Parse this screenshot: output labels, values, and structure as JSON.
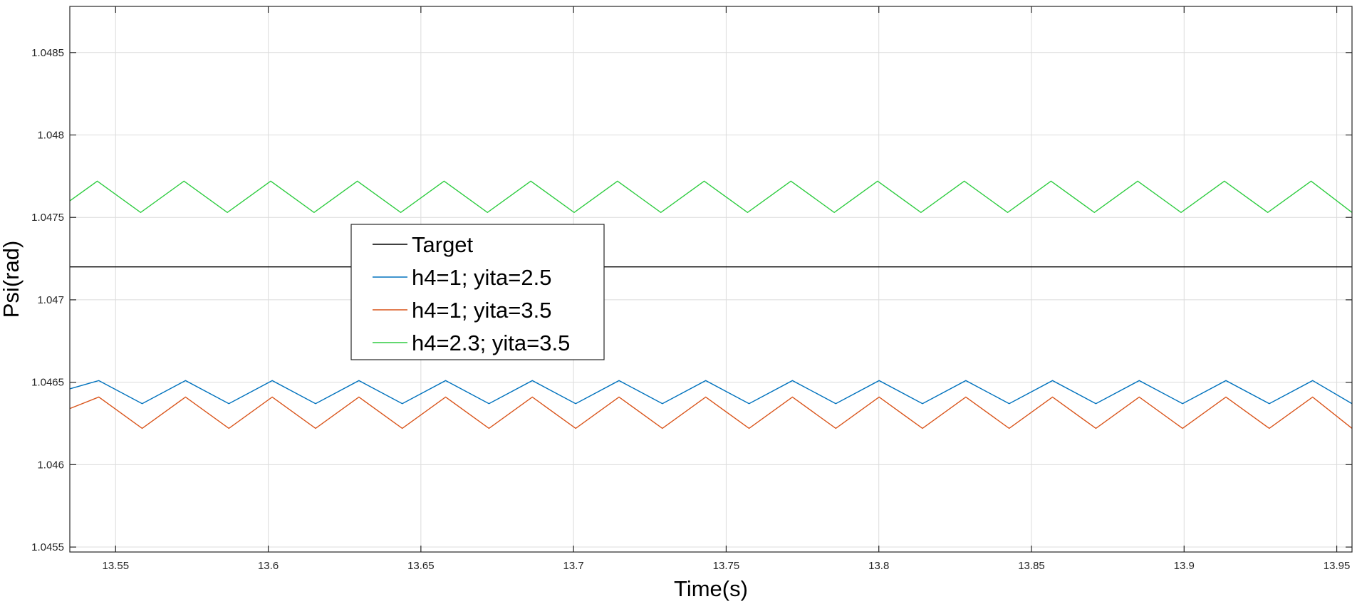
{
  "chart_data": {
    "type": "line",
    "xlabel": "Time(s)",
    "ylabel": "Psi(rad)",
    "xlim": [
      13.535,
      13.955
    ],
    "ylim": [
      1.04547,
      1.04878
    ],
    "x_ticks": [
      13.55,
      13.6,
      13.65,
      13.7,
      13.75,
      13.8,
      13.85,
      13.9,
      13.95
    ],
    "x_tick_labels": [
      "13.55",
      "13.6",
      "13.65",
      "13.7",
      "13.75",
      "13.8",
      "13.85",
      "13.9",
      "13.95"
    ],
    "y_ticks": [
      1.0455,
      1.046,
      1.0465,
      1.047,
      1.0475,
      1.048,
      1.0485
    ],
    "y_tick_labels": [
      "1.0455",
      "1.046",
      "1.0465",
      "1.047",
      "1.0475",
      "1.048",
      "1.0485"
    ],
    "grid": true,
    "legend_position": "center-left",
    "series": [
      {
        "name": "Target",
        "color": "#000000",
        "constant": 1.0472
      },
      {
        "name": "h4=1; yita=2.5",
        "color": "#0072BD",
        "x0": 13.5445,
        "period": 0.0284,
        "low": 1.04637,
        "high": 1.04651,
        "start_value": 1.04646
      },
      {
        "name": "h4=1; yita=3.5",
        "color": "#D95319",
        "x0": 13.5445,
        "period": 0.0284,
        "low": 1.04622,
        "high": 1.04641,
        "start_value": 1.04634
      },
      {
        "name": "h4=2.3; yita=3.5",
        "color": "#2ECC40",
        "x0": 13.544,
        "period": 0.0284,
        "low": 1.04753,
        "high": 1.04772,
        "start_value": 1.0476
      }
    ]
  }
}
